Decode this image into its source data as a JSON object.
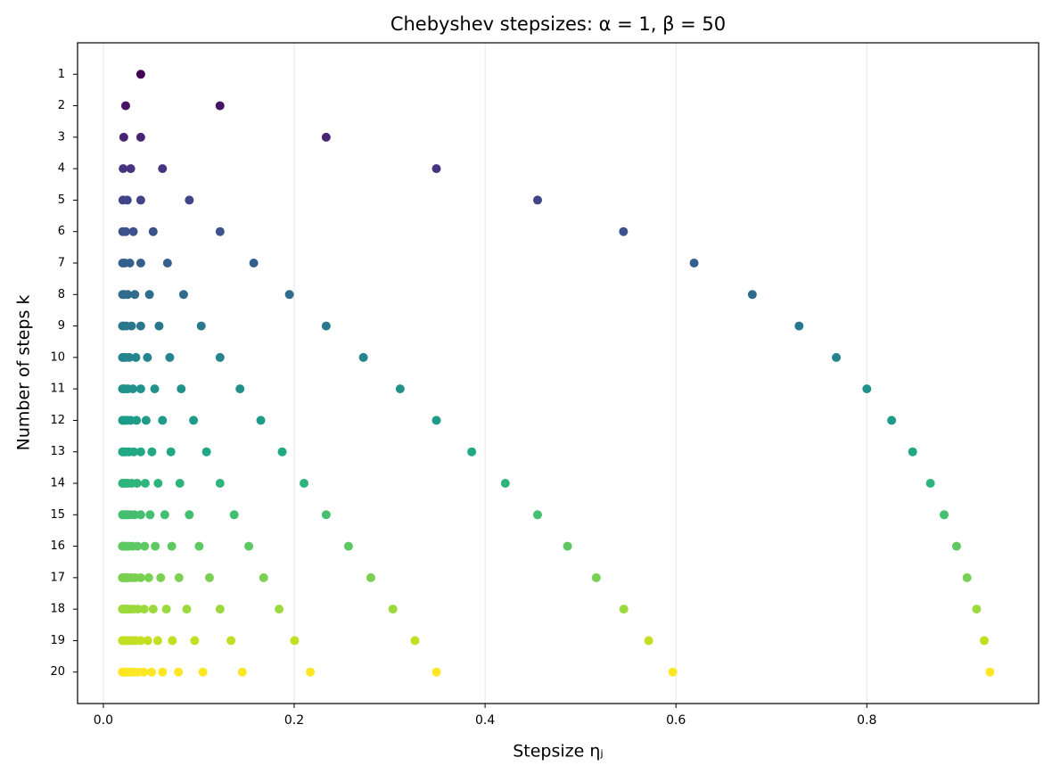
{
  "chart_data": {
    "type": "scatter",
    "title": "Chebyshev stepsizes: α = 1,  β = 50",
    "x_label": "Stepsize ηⱼ",
    "y_label": "Number of steps k",
    "xlim": [
      -0.027,
      0.98
    ],
    "ylim": [
      21,
      0
    ],
    "xticks": [
      {
        "value": 0,
        "label": "0.0"
      },
      0.2,
      0.4,
      0.6,
      0.8
    ],
    "yticks": [
      1,
      2,
      3,
      4,
      5,
      6,
      7,
      8,
      9,
      10,
      11,
      12,
      13,
      14,
      15,
      16,
      17,
      18,
      19,
      20
    ],
    "grid": true,
    "series": [
      {
        "color": "#440154",
        "y": 1,
        "x": [
          0.0392
        ]
      },
      {
        "color": "#471365",
        "y": 2,
        "x": [
          0.0234,
          0.1222
        ]
      },
      {
        "color": "#482475",
        "y": 3,
        "x": [
          0.0214,
          0.0392,
          0.2335
        ]
      },
      {
        "color": "#463480",
        "y": 4,
        "x": [
          0.0208,
          0.0287,
          0.062,
          0.349
        ]
      },
      {
        "color": "#414487",
        "y": 5,
        "x": [
          0.0205,
          0.0251,
          0.0392,
          0.0901,
          0.455
        ]
      },
      {
        "color": "#3b528b",
        "y": 6,
        "x": [
          0.0203,
          0.0234,
          0.0314,
          0.0522,
          0.1223,
          0.545
        ]
      },
      {
        "color": "#355f8d",
        "y": 7,
        "x": [
          0.0202,
          0.0224,
          0.0277,
          0.0392,
          0.0672,
          0.1576,
          0.619
        ]
      },
      {
        "color": "#2f6c8e",
        "y": 8,
        "x": [
          0.0202,
          0.0218,
          0.0256,
          0.033,
          0.0483,
          0.0841,
          0.195,
          0.68
        ]
      },
      {
        "color": "#2a788e",
        "y": 9,
        "x": [
          0.0201,
          0.0214,
          0.0242,
          0.0295,
          0.0392,
          0.0584,
          0.1026,
          0.2335,
          0.729
        ]
      },
      {
        "color": "#25848e",
        "y": 10,
        "x": [
          0.0201,
          0.0211,
          0.0234,
          0.0273,
          0.0341,
          0.0462,
          0.0696,
          0.1223,
          0.2725,
          0.768
        ]
      },
      {
        "color": "#21918c",
        "y": 11,
        "x": [
          0.0201,
          0.0209,
          0.0227,
          0.0258,
          0.0309,
          0.0392,
          0.0538,
          0.0816,
          0.1432,
          0.311,
          0.8
        ]
      },
      {
        "color": "#1e9c89",
        "y": 12,
        "x": [
          0.0201,
          0.0208,
          0.0223,
          0.0247,
          0.0287,
          0.0348,
          0.0448,
          0.062,
          0.0945,
          0.165,
          0.349,
          0.826
        ]
      },
      {
        "color": "#22a884",
        "y": 13,
        "x": [
          0.0201,
          0.0207,
          0.0219,
          0.024,
          0.0271,
          0.0319,
          0.0392,
          0.0509,
          0.0708,
          0.1081,
          0.1874,
          0.386,
          0.848
        ]
      },
      {
        "color": "#2fb47c",
        "y": 14,
        "x": [
          0.0201,
          0.0206,
          0.0216,
          0.0234,
          0.026,
          0.0298,
          0.0354,
          0.0439,
          0.0574,
          0.0802,
          0.1223,
          0.2103,
          0.4212,
          0.8666
        ]
      },
      {
        "color": "#44bf70",
        "y": 15,
        "x": [
          0.0201,
          0.0205,
          0.0214,
          0.0229,
          0.0251,
          0.0282,
          0.0327,
          0.0392,
          0.049,
          0.0644,
          0.0901,
          0.1371,
          0.2335,
          0.455,
          0.881
        ]
      },
      {
        "color": "#5ec962",
        "y": 16,
        "x": [
          0.02,
          0.0204,
          0.0212,
          0.0225,
          0.0244,
          0.027,
          0.0307,
          0.0358,
          0.0433,
          0.0544,
          0.0717,
          0.1004,
          0.1524,
          0.2569,
          0.4864,
          0.894
        ]
      },
      {
        "color": "#7ad151",
        "y": 17,
        "x": [
          0.02,
          0.0204,
          0.0211,
          0.0222,
          0.0238,
          0.026,
          0.0291,
          0.0333,
          0.0392,
          0.0476,
          0.0601,
          0.0793,
          0.1112,
          0.168,
          0.2803,
          0.5165,
          0.905
        ]
      },
      {
        "color": "#9bd93c",
        "y": 18,
        "x": [
          0.02,
          0.0203,
          0.021,
          0.0219,
          0.0234,
          0.0253,
          0.0279,
          0.0314,
          0.0362,
          0.0428,
          0.0522,
          0.066,
          0.0874,
          0.1223,
          0.1842,
          0.3034,
          0.5453,
          0.915
        ]
      },
      {
        "color": "#c2df23",
        "y": 19,
        "x": [
          0.02,
          0.0203,
          0.0209,
          0.0217,
          0.023,
          0.0247,
          0.0269,
          0.0299,
          0.0339,
          0.0392,
          0.0466,
          0.057,
          0.0723,
          0.0957,
          0.1338,
          0.2004,
          0.3265,
          0.5714,
          0.923
        ]
      },
      {
        "color": "#fde725",
        "y": 20,
        "x": [
          0.02,
          0.0203,
          0.0208,
          0.0216,
          0.0227,
          0.0241,
          0.0261,
          0.0287,
          0.032,
          0.0365,
          0.0424,
          0.0506,
          0.062,
          0.0787,
          0.1043,
          0.1456,
          0.2169,
          0.349,
          0.5967,
          0.929
        ]
      }
    ]
  }
}
